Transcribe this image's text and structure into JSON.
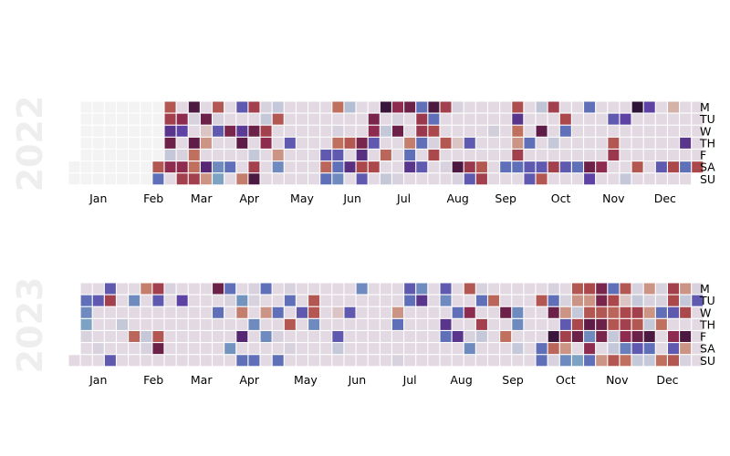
{
  "chart_data": {
    "type": "heatmap",
    "title": "",
    "colormap": "twilight",
    "empty_cell_color": "#f3f3f3",
    "panels": [
      {
        "year_label": "2022",
        "month_labels": [
          "Jan",
          "Feb",
          "Mar",
          "Apr",
          "May",
          "Jun",
          "Jul",
          "Aug",
          "Sep",
          "Oct",
          "Nov",
          "Dec"
        ],
        "day_labels": [
          "M",
          "TU",
          "W",
          "TH",
          "F",
          "SA",
          "SU"
        ],
        "first_weekday_row": 5,
        "num_days": 365,
        "empty_days": [
          0,
          1,
          2,
          3,
          4,
          5,
          6,
          7,
          8,
          9,
          10,
          11,
          12,
          13,
          14,
          15,
          16,
          17,
          18,
          19,
          20,
          21,
          22,
          23,
          24,
          25,
          26,
          27,
          28,
          29,
          30,
          31,
          32,
          33,
          34,
          35,
          36,
          37,
          38,
          39,
          40,
          41,
          42,
          43,
          44,
          45,
          46,
          47,
          48
        ],
        "values": {
          "49": 0.75,
          "50": 0.25,
          "51": 0.75,
          "52": 0.7,
          "53": 0.4,
          "54": 0.6,
          "55": 0.05,
          "56": 0.65,
          "59": 0.65,
          "60": 0.35,
          "62": 0.02,
          "63": 0.65,
          "64": 0.7,
          "65": 0.55,
          "66": 0.02,
          "68": 0.58,
          "69": 0.8,
          "70": 0.8,
          "71": 0.7,
          "73": 0.6,
          "74": 0.95,
          "75": 0.85,
          "77": 0.45,
          "78": 0.85,
          "79": 0.75,
          "80": 0.02,
          "81": 0.3,
          "84": 0.2,
          "85": 0.15,
          "88": 0.62,
          "91": 0.25,
          "93": 0.3,
          "95": 0.38,
          "96": 0.58,
          "99": 0.82,
          "100": 0.7,
          "102": 0.6,
          "104": 0.05,
          "105": 0.7,
          "106": 0.55,
          "107": 0.02,
          "108": 0.05,
          "109": 0.7,
          "110": 0.65,
          "114": 0.05,
          "115": 0.75,
          "118": 0.85,
          "119": 0.2,
          "124": 0.3,
          "146": 0.3,
          "147": 0.78,
          "148": 0.25,
          "149": 0.8,
          "151": 0.02,
          "152": 0.8,
          "153": 0.3,
          "154": 0.25,
          "155": 0.2,
          "156": 0.08,
          "159": 0.75,
          "161": 0.42,
          "166": 0.62,
          "167": 0.42,
          "168": 0.72,
          "169": 0.3,
          "171": 0.62,
          "172": 0.65,
          "173": 0.3,
          "175": 0.72,
          "177": 0.52,
          "179": 0.05,
          "181": 0.78,
          "183": 0.05,
          "184": 0.65,
          "185": 0.02,
          "186": 0.6,
          "190": 0.02,
          "191": 0.6,
          "194": 0.82,
          "195": 0.25,
          "196": 0.4,
          "198": 0.25,
          "199": 0.68,
          "200": 0.68,
          "201": 0.25,
          "203": 0.3,
          "205": 0.55,
          "206": 0.25,
          "207": 0.72,
          "208": 0.02,
          "209": 0.72,
          "212": 0.7,
          "215": 0.75,
          "217": 0.02,
          "219": 0.02,
          "222": 0.95,
          "224": 0.55,
          "225": 0.02,
          "229": 0.3,
          "231": 0.68,
          "232": 0.3,
          "238": 0.75,
          "239": 0.7,
          "242": 0.03,
          "252": 0.25,
          "254": 0.73,
          "255": 0.4,
          "256": 0.8,
          "257": 0.85,
          "258": 0.7,
          "259": 0.25,
          "264": 0.25,
          "266": 0.3,
          "267": 0.3,
          "268": 0.06,
          "270": 0.58,
          "273": 0.3,
          "274": 0.75,
          "275": 0.7,
          "278": 0.05,
          "280": 0.7,
          "283": 0.72,
          "284": 0.25,
          "287": 0.3,
          "294": 0.25,
          "296": 0.25,
          "301": 0.6,
          "302": 0.35,
          "308": 0.65,
          "311": 0.3,
          "313": 0.75,
          "314": 0.68,
          "318": 0.35,
          "323": 0.05,
          "324": 0.5,
          "329": 0.75,
          "331": 0.35,
          "343": 0.3,
          "345": 0.9,
          "350": 0.72,
          "355": 0.4,
          "357": 0.25,
          "364": 0.72
        }
      },
      {
        "year_label": "2023",
        "month_labels": [
          "Jan",
          "Feb",
          "Mar",
          "Apr",
          "May",
          "Jun",
          "Jul",
          "Aug",
          "Sep",
          "Oct",
          "Nov",
          "Dec"
        ],
        "day_labels": [
          "M",
          "TU",
          "W",
          "TH",
          "F",
          "SA",
          "SU"
        ],
        "first_weekday_row": 6,
        "num_days": 365,
        "empty_days": [],
        "values": {
          "2": 0.25,
          "3": 0.2,
          "4": 0.15,
          "5": 0.02,
          "9": 0.3,
          "13": 0.02,
          "15": 0.3,
          "16": 0.7,
          "21": 0.3,
          "25": 0.05,
          "30": 0.2,
          "33": 0.78,
          "36": 0.82,
          "40": 0.05,
          "41": 0.02,
          "43": 0.7,
          "44": 0.3,
          "47": 0.75,
          "48": 0.6,
          "50": 0.02,
          "58": 0.35,
          "78": 0.6,
          "80": 0.25,
          "85": 0.25,
          "86": 0.02,
          "90": 0.18,
          "93": 0.18,
          "94": 0.82,
          "96": 0.45,
          "98": 0.25,
          "99": 0.02,
          "100": 0.02,
          "102": 0.2,
          "105": 0.25,
          "106": 0.25,
          "108": 0.85,
          "110": 0.2,
          "115": 0.25,
          "117": 0.02,
          "119": 0.25,
          "120": 0.02,
          "121": 0.25,
          "123": 0.75,
          "125": 0.02,
          "129": 0.3,
          "135": 0.75,
          "136": 0.75,
          "137": 0.2,
          "150": 0.95,
          "152": 0.3,
          "153": 0.05,
          "157": 0.3,
          "162": 0.2,
          "185": 0.85,
          "186": 0.25,
          "189": 0.02,
          "190": 0.3,
          "191": 0.25,
          "197": 0.2,
          "198": 0.4,
          "211": 0.3,
          "212": 0.2,
          "214": 0.4,
          "215": 0.25,
          "220": 0.25,
          "222": 0.4,
          "225": 0.75,
          "227": 0.65,
          "229": 0.02,
          "230": 0.2,
          "232": 0.02,
          "233": 0.25,
          "235": 0.7,
          "236": 0.05,
          "240": 0.78,
          "248": 0.6,
          "250": 0.8,
          "255": 0.2,
          "256": 0.2,
          "258": 0.05,
          "268": 0.75,
          "272": 0.25,
          "273": 0.25,
          "274": 0.02,
          "275": 0.25,
          "276": 0.6,
          "278": 0.52,
          "279": 0.78,
          "280": 0.02,
          "282": 0.02,
          "283": 0.85,
          "284": 0.3,
          "285": 0.7,
          "286": 0.85,
          "287": 0.2,
          "288": 0.75,
          "289": 0.85,
          "290": 0.05,
          "291": 0.72,
          "292": 0.6,
          "294": 0.15,
          "295": 0.72,
          "296": 0.85,
          "297": 0.75,
          "298": 0.58,
          "299": 0.2,
          "300": 0.65,
          "301": 0.25,
          "302": 0.62,
          "303": 0.62,
          "304": 0.75,
          "305": 0.6,
          "306": 0.62,
          "308": 0.85,
          "309": 0.25,
          "310": 0.72,
          "311": 0.78,
          "312": 0.75,
          "313": 0.05,
          "314": 0.05,
          "315": 0.75,
          "316": 0.75,
          "317": 0.95,
          "318": 0.72,
          "319": 0.7,
          "320": 0.65,
          "321": 0.22,
          "322": 0.8,
          "323": 0.02,
          "324": 0.05,
          "325": 0.7,
          "326": 0.75,
          "327": 0.6,
          "328": 0.3,
          "329": 0.05,
          "330": 0.85,
          "331": 0.02,
          "332": 0.85,
          "333": 0.05,
          "334": 0.55,
          "335": 0.25,
          "336": 0.05,
          "337": 0.02,
          "338": 0.02,
          "339": 0.25,
          "340": 0.8,
          "343": 0.8,
          "344": 0.7,
          "345": 0.72,
          "346": 0.3,
          "348": 0.65,
          "349": 0.3,
          "350": 0.75,
          "351": 0.85,
          "352": 0.05,
          "353": 0.72,
          "355": 0.55,
          "356": 0.85,
          "357": 0.02,
          "358": 0.02,
          "359": 0.3
        }
      }
    ]
  }
}
